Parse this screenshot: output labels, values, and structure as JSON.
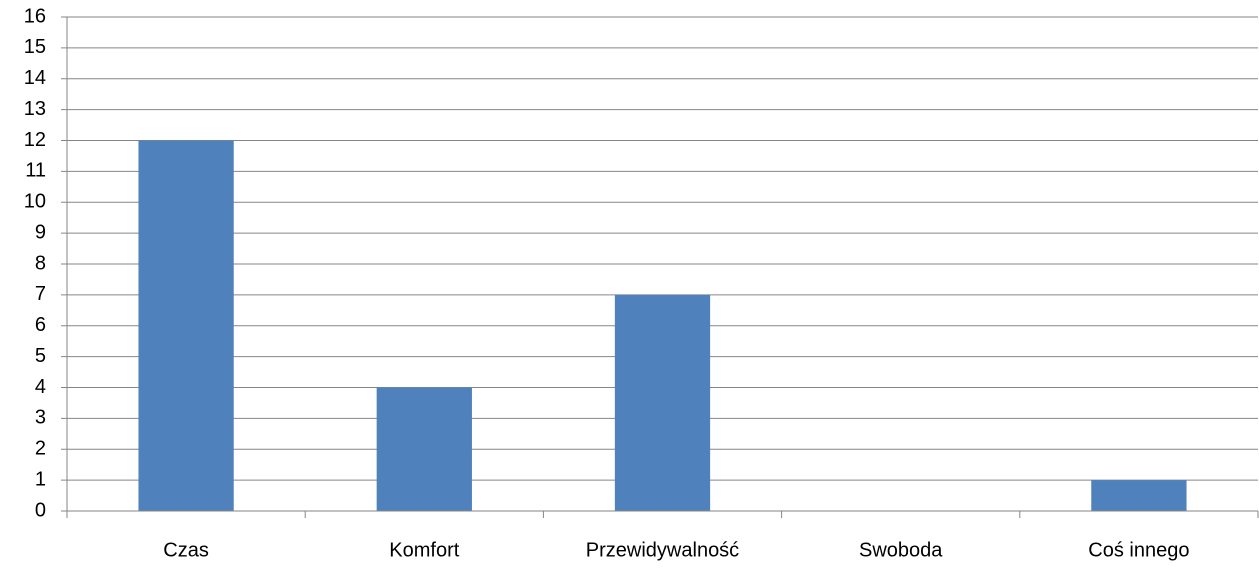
{
  "chart_data": {
    "type": "bar",
    "categories": [
      "Czas",
      "Komfort",
      "Przewidywalność",
      "Swoboda",
      "Coś innego"
    ],
    "values": [
      12,
      4,
      7,
      0,
      1
    ],
    "color": "#4f81bd",
    "ylim": [
      0,
      16
    ],
    "yticks": [
      0,
      1,
      2,
      3,
      4,
      5,
      6,
      7,
      8,
      9,
      10,
      11,
      12,
      13,
      14,
      15,
      16
    ],
    "grid": true
  }
}
